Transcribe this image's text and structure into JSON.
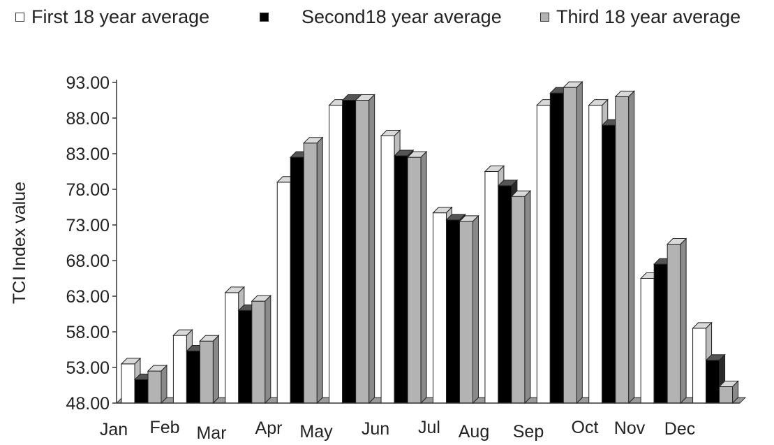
{
  "legend": [
    {
      "label": "First 18 year average",
      "color": "#ffffff"
    },
    {
      "label": "Second18 year average",
      "color": "#000000"
    },
    {
      "label": "Third 18 year average",
      "color": "#b3b3b3"
    }
  ],
  "chart_data": {
    "type": "bar",
    "title": "",
    "xlabel": "",
    "ylabel": "TCI Index value",
    "ylim": [
      48,
      93
    ],
    "y_ticks": [
      "93.00",
      "88.00",
      "83.00",
      "78.00",
      "73.00",
      "68.00",
      "63.00",
      "58.00",
      "53.00",
      "48.00"
    ],
    "categories": [
      "Jan",
      "Feb",
      "Mar",
      "Apr",
      "May",
      "Jun",
      "Jul",
      "Aug",
      "Sep",
      "Oct",
      "Nov",
      "Dec"
    ],
    "series": [
      {
        "name": "First 18 year average",
        "color": "#ffffff",
        "values": [
          53.5,
          57.5,
          63.5,
          79.0,
          89.8,
          85.5,
          74.7,
          80.5,
          89.8,
          89.8,
          65.5,
          58.5
        ]
      },
      {
        "name": "Second18 year average",
        "color": "#000000",
        "values": [
          51.3,
          55.3,
          61.0,
          82.5,
          90.5,
          82.7,
          73.7,
          78.5,
          91.5,
          87.0,
          67.5,
          54.0
        ]
      },
      {
        "name": "Third 18 year average",
        "color": "#b3b3b3",
        "values": [
          52.5,
          56.7,
          62.3,
          84.5,
          90.5,
          82.5,
          73.5,
          77.0,
          92.3,
          91.0,
          70.3,
          50.3
        ]
      }
    ],
    "grid": false,
    "legend_position": "top",
    "style": "3d"
  }
}
